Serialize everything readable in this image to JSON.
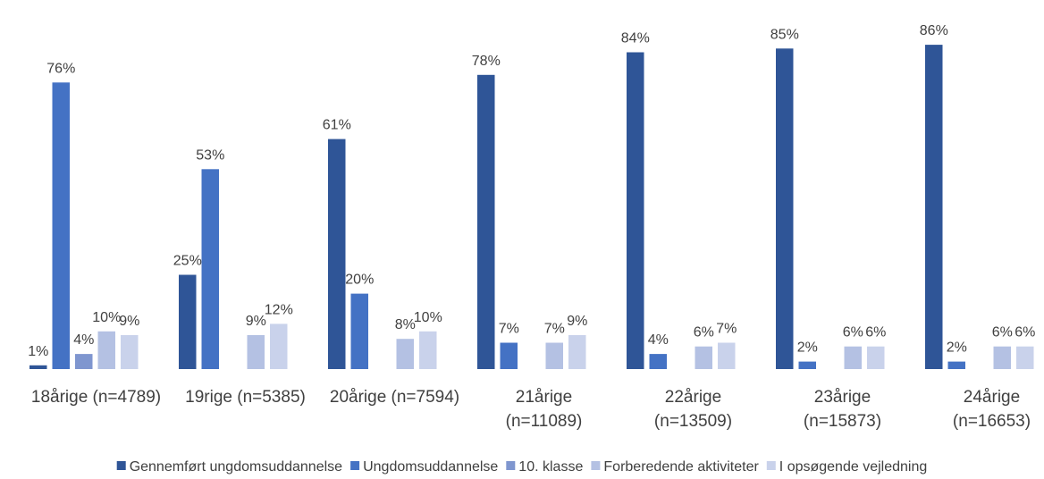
{
  "chart_data": {
    "type": "bar",
    "title": "",
    "xlabel": "",
    "ylabel": "",
    "ylim": [
      0,
      100
    ],
    "grid": false,
    "legend_position": "bottom",
    "categories": [
      [
        "18årige (n=4789)"
      ],
      [
        "19rige (n=5385)"
      ],
      [
        "20årige (n=7594)"
      ],
      [
        "21årige",
        "(n=11089)"
      ],
      [
        "22årige",
        "(n=13509)"
      ],
      [
        "23årige",
        "(n=15873)"
      ],
      [
        "24årige",
        "(n=16653)"
      ]
    ],
    "series": [
      {
        "name": "Gennemført ungdomsuddannelse",
        "color": "#2f5597",
        "values": [
          1,
          25,
          61,
          78,
          84,
          85,
          86
        ],
        "labels": [
          "1%",
          "25%",
          "61%",
          "78%",
          "84%",
          "85%",
          "86%"
        ]
      },
      {
        "name": "Ungdomsuddannelse",
        "color": "#4472c4",
        "values": [
          76,
          53,
          20,
          7,
          4,
          2,
          2
        ],
        "labels": [
          "76%",
          "53%",
          "20%",
          "7%",
          "4%",
          "2%",
          "2%"
        ]
      },
      {
        "name": "10. klasse",
        "color": "#7f96cf",
        "values": [
          4,
          null,
          null,
          null,
          null,
          null,
          null
        ],
        "labels": [
          "4%",
          "",
          "",
          "",
          "",
          "",
          ""
        ]
      },
      {
        "name": "Forberedende aktiviteter",
        "color": "#b4c1e3",
        "values": [
          10,
          9,
          8,
          7,
          6,
          6,
          6
        ],
        "labels": [
          "10%",
          "9%",
          "8%",
          "7%",
          "6%",
          "6%",
          "6%"
        ]
      },
      {
        "name": "I opsøgende vejledning",
        "color": "#c9d2eb",
        "values": [
          9,
          12,
          10,
          9,
          7,
          6,
          6
        ],
        "labels": [
          "9%",
          "12%",
          "10%",
          "9%",
          "7%",
          "6%",
          "6%"
        ]
      }
    ]
  }
}
